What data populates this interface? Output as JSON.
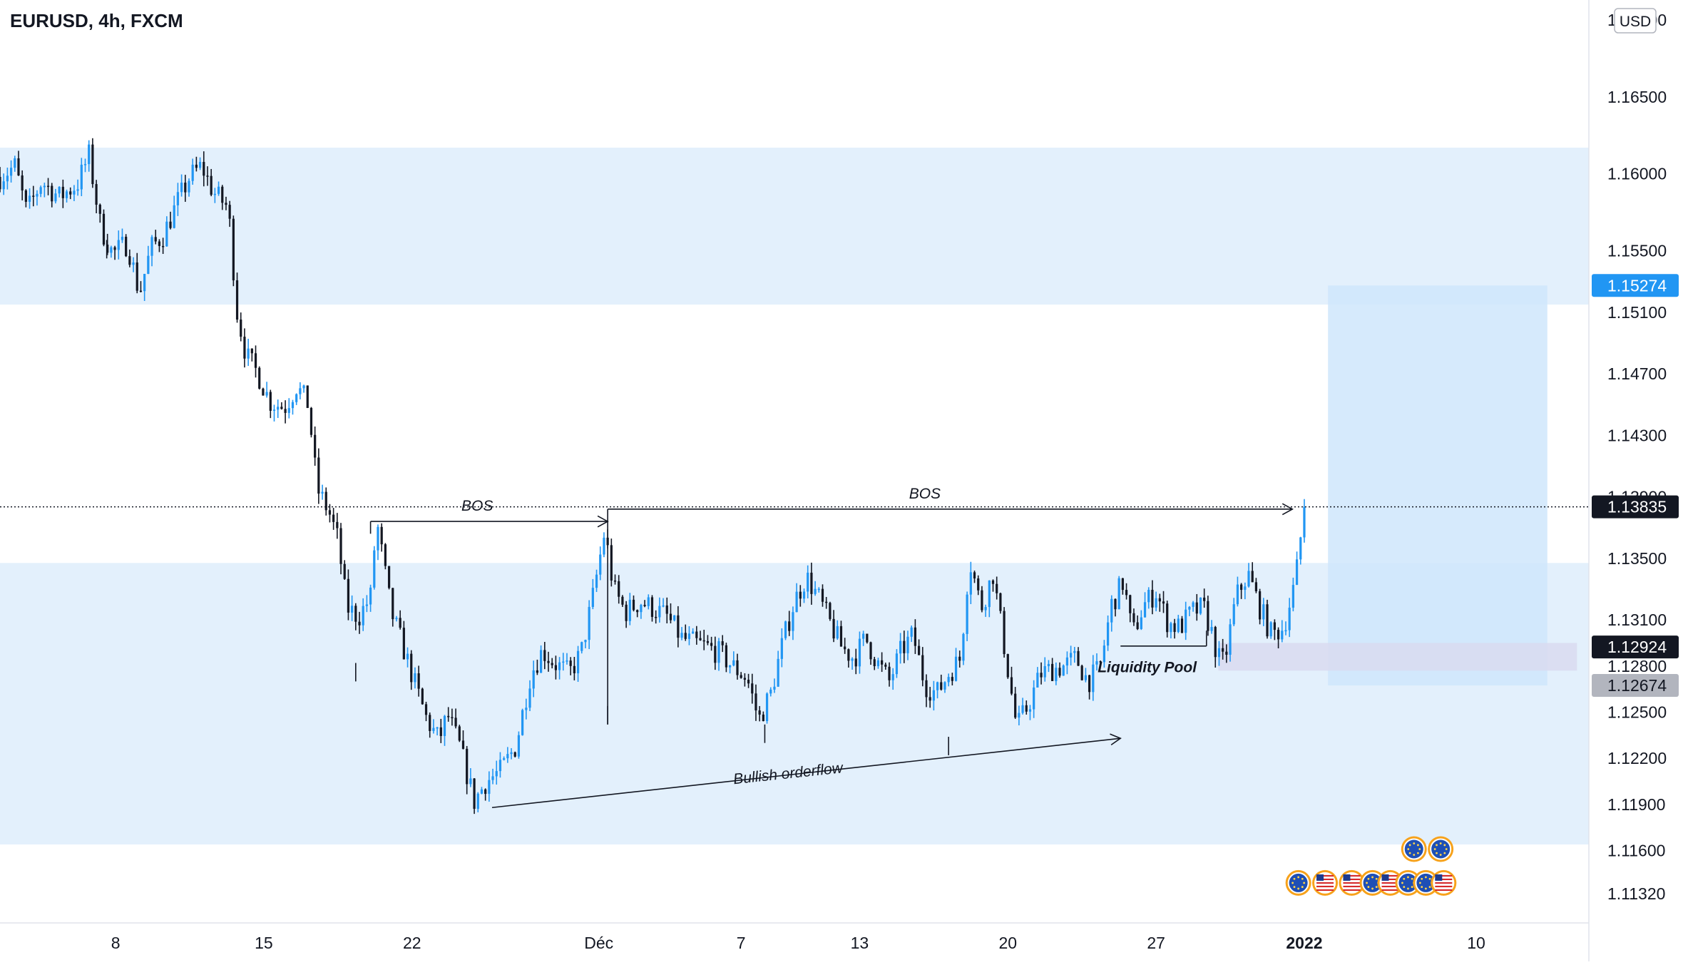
{
  "header": {
    "title": "EURUSD, 4h, FXCM",
    "currency": "USD"
  },
  "colors": {
    "bull": "#2196f3",
    "bear": "#131722",
    "zone": "#e3f0fc",
    "target": "#cfe6fb",
    "liquidity": "#d9dbf0",
    "axis_text": "#131722",
    "last_price_bg": "#131722",
    "target_price_bg": "#2196f3",
    "stop_price_bg": "#b2b5be"
  },
  "chart_data": {
    "type": "candlestick",
    "timeframe": "4h",
    "yaxis": {
      "ylim": [
        1.1113,
        1.1713
      ],
      "ticks": [
        "1.17000",
        "1.16500",
        "1.16000",
        "1.15500",
        "1.15100",
        "1.14700",
        "1.14300",
        "1.13900",
        "1.13500",
        "1.13100",
        "1.12800",
        "1.12500",
        "1.12200",
        "1.11900",
        "1.11600",
        "1.11320"
      ]
    },
    "xaxis": {
      "ticks": [
        {
          "label": "8",
          "x": 2.5
        },
        {
          "label": "15",
          "x": 7.5
        },
        {
          "label": "22",
          "x": 12.5
        },
        {
          "label": "Déc",
          "x": 18.8
        },
        {
          "label": "7",
          "x": 23.6
        },
        {
          "label": "13",
          "x": 27.6
        },
        {
          "label": "20",
          "x": 32.6
        },
        {
          "label": "27",
          "x": 37.6
        },
        {
          "label": "2022",
          "x": 42.6
        },
        {
          "label": "10",
          "x": 48.4
        }
      ],
      "xlim": [
        -1.4,
        52.2
      ]
    },
    "price_labels": [
      {
        "value": 1.15274,
        "text": "1.15274",
        "kind": "target"
      },
      {
        "value": 1.13835,
        "text": "1.13835",
        "kind": "last"
      },
      {
        "value": 1.12924,
        "text": "1.12924",
        "kind": "entry"
      },
      {
        "value": 1.12674,
        "text": "1.12674",
        "kind": "stop"
      }
    ],
    "last_price": 1.13835,
    "zones": [
      {
        "y1": 1.1515,
        "y2": 1.1617,
        "x1": -1.4,
        "x2": 52.2
      },
      {
        "y1": 1.1164,
        "y2": 1.1347,
        "x1": -1.4,
        "x2": 52.2
      }
    ],
    "position_box": {
      "x1": 43.4,
      "x2": 50.8,
      "y1": 1.12674,
      "y2": 1.15274
    },
    "liquidity_box": {
      "x1": 39.7,
      "x2": 51.8,
      "y1": 1.1277,
      "y2": 1.1295
    },
    "annotations": [
      {
        "text": "BOS",
        "x": 14.7,
        "y": 1.1381,
        "angle": 0,
        "italic": true
      },
      {
        "text": "BOS",
        "x": 29.8,
        "y": 1.1389,
        "angle": 0,
        "italic": true
      },
      {
        "text": "Bullish orderflow",
        "x": 25.2,
        "y": 1.1207,
        "angle": -6,
        "italic": true
      },
      {
        "text": "Liquidity Pool",
        "x": 37.3,
        "y": 1.1276,
        "angle": 0,
        "italic": true,
        "bold": true
      }
    ],
    "lines": [
      {
        "x1": 11.1,
        "y1": 1.1374,
        "x2": 19.1,
        "y2": 1.1374,
        "arrow": true
      },
      {
        "x1": 11.1,
        "y1": 1.1374,
        "x2": 11.1,
        "y2": 1.1366,
        "arrow": false
      },
      {
        "x1": 19.1,
        "y1": 1.1382,
        "x2": 42.2,
        "y2": 1.1382,
        "arrow": true
      },
      {
        "x1": 19.1,
        "y1": 1.1382,
        "x2": 19.1,
        "y2": 1.1242,
        "arrow": false
      },
      {
        "x1": 15.2,
        "y1": 1.1188,
        "x2": 36.4,
        "y2": 1.1233,
        "arrow": true
      },
      {
        "x1": 36.4,
        "y1": 1.1293,
        "x2": 39.3,
        "y2": 1.1293,
        "arrow": false
      },
      {
        "x1": 39.3,
        "y1": 1.1293,
        "x2": 39.3,
        "y2": 1.1303,
        "arrow": false
      }
    ],
    "events": [
      {
        "x": 46.3,
        "y": 1.1161,
        "flag": "eu"
      },
      {
        "x": 47.2,
        "y": 1.1161,
        "flag": "eu"
      },
      {
        "x": 42.4,
        "y": 1.1139,
        "flag": "eu"
      },
      {
        "x": 43.3,
        "y": 1.1139,
        "flag": "us"
      },
      {
        "x": 44.2,
        "y": 1.1139,
        "flag": "us"
      },
      {
        "x": 44.9,
        "y": 1.1139,
        "flag": "eu"
      },
      {
        "x": 45.5,
        "y": 1.1139,
        "flag": "us"
      },
      {
        "x": 46.1,
        "y": 1.1139,
        "flag": "eu"
      },
      {
        "x": 46.7,
        "y": 1.1139,
        "flag": "eu"
      },
      {
        "x": 47.3,
        "y": 1.1139,
        "flag": "us"
      }
    ],
    "path": [
      [
        -1.4,
        1.1598
      ],
      [
        -0.9,
        1.1605
      ],
      [
        -0.5,
        1.1575
      ],
      [
        0,
        1.1595
      ],
      [
        0.6,
        1.1585
      ],
      [
        1.2,
        1.1593
      ],
      [
        1.6,
        1.1612
      ],
      [
        2.0,
        1.1565
      ],
      [
        2.4,
        1.1548
      ],
      [
        2.9,
        1.1555
      ],
      [
        3.3,
        1.1522
      ],
      [
        3.7,
        1.1552
      ],
      [
        4.1,
        1.156
      ],
      [
        4.6,
        1.1582
      ],
      [
        5.0,
        1.1598
      ],
      [
        5.4,
        1.1605
      ],
      [
        5.8,
        1.1588
      ],
      [
        6.3,
        1.1578
      ],
      [
        6.6,
        1.151
      ],
      [
        6.9,
        1.1482
      ],
      [
        7.3,
        1.147
      ],
      [
        7.7,
        1.1452
      ],
      [
        8.2,
        1.1448
      ],
      [
        8.6,
        1.1462
      ],
      [
        9.0,
        1.145
      ],
      [
        9.3,
        1.1395
      ],
      [
        9.7,
        1.138
      ],
      [
        10.0,
        1.1362
      ],
      [
        10.3,
        1.1318
      ],
      [
        10.7,
        1.1312
      ],
      [
        11.1,
        1.1325
      ],
      [
        11.3,
        1.1375
      ],
      [
        11.8,
        1.1315
      ],
      [
        12.2,
        1.1292
      ],
      [
        12.6,
        1.1268
      ],
      [
        13.0,
        1.1245
      ],
      [
        13.4,
        1.1232
      ],
      [
        13.7,
        1.1248
      ],
      [
        14.1,
        1.1228
      ],
      [
        14.6,
        1.1192
      ],
      [
        15.0,
        1.1205
      ],
      [
        15.5,
        1.1212
      ],
      [
        16.0,
        1.1228
      ],
      [
        16.5,
        1.1275
      ],
      [
        16.9,
        1.129
      ],
      [
        17.3,
        1.1282
      ],
      [
        17.8,
        1.1275
      ],
      [
        18.2,
        1.1288
      ],
      [
        18.6,
        1.1325
      ],
      [
        19.0,
        1.1368
      ],
      [
        19.3,
        1.133
      ],
      [
        19.7,
        1.1315
      ],
      [
        20.2,
        1.1322
      ],
      [
        20.6,
        1.1318
      ],
      [
        21.1,
        1.1312
      ],
      [
        21.6,
        1.1298
      ],
      [
        22.0,
        1.1295
      ],
      [
        22.5,
        1.1292
      ],
      [
        22.9,
        1.1288
      ],
      [
        23.3,
        1.128
      ],
      [
        23.8,
        1.1272
      ],
      [
        24.2,
        1.1245
      ],
      [
        24.6,
        1.1262
      ],
      [
        25.0,
        1.1295
      ],
      [
        25.4,
        1.1322
      ],
      [
        25.8,
        1.1338
      ],
      [
        26.2,
        1.1325
      ],
      [
        26.6,
        1.1308
      ],
      [
        27.0,
        1.1292
      ],
      [
        27.4,
        1.1285
      ],
      [
        27.8,
        1.1298
      ],
      [
        28.2,
        1.1282
      ],
      [
        28.6,
        1.127
      ],
      [
        29.0,
        1.129
      ],
      [
        29.4,
        1.13
      ],
      [
        29.8,
        1.1268
      ],
      [
        30.2,
        1.1262
      ],
      [
        30.6,
        1.1275
      ],
      [
        31.0,
        1.1285
      ],
      [
        31.3,
        1.135
      ],
      [
        31.7,
        1.1318
      ],
      [
        32.1,
        1.134
      ],
      [
        32.5,
        1.129
      ],
      [
        32.9,
        1.124
      ],
      [
        33.3,
        1.1255
      ],
      [
        33.7,
        1.1275
      ],
      [
        34.1,
        1.1278
      ],
      [
        34.5,
        1.128
      ],
      [
        34.9,
        1.1285
      ],
      [
        35.3,
        1.127
      ],
      [
        35.7,
        1.1278
      ],
      [
        36.1,
        1.132
      ],
      [
        36.5,
        1.1335
      ],
      [
        36.8,
        1.13
      ],
      [
        37.2,
        1.132
      ],
      [
        37.6,
        1.1328
      ],
      [
        38.0,
        1.1308
      ],
      [
        38.4,
        1.1305
      ],
      [
        38.8,
        1.1315
      ],
      [
        39.2,
        1.1318
      ],
      [
        39.5,
        1.13
      ],
      [
        39.7,
        1.1285
      ],
      [
        39.9,
        1.1282
      ],
      [
        40.3,
        1.1325
      ],
      [
        40.7,
        1.134
      ],
      [
        41.1,
        1.1318
      ],
      [
        41.5,
        1.13
      ],
      [
        41.9,
        1.1305
      ],
      [
        42.3,
        1.1335
      ],
      [
        42.6,
        1.13835
      ]
    ],
    "wicks": [
      {
        "x": 2.2,
        "y": 1.1545
      },
      {
        "x": 10.6,
        "y": 1.127
      },
      {
        "x": 19.1,
        "y": 1.1242
      },
      {
        "x": 24.4,
        "y": 1.123
      },
      {
        "x": 30.6,
        "y": 1.1222
      },
      {
        "x": 39.6,
        "y": 1.1279
      }
    ]
  }
}
